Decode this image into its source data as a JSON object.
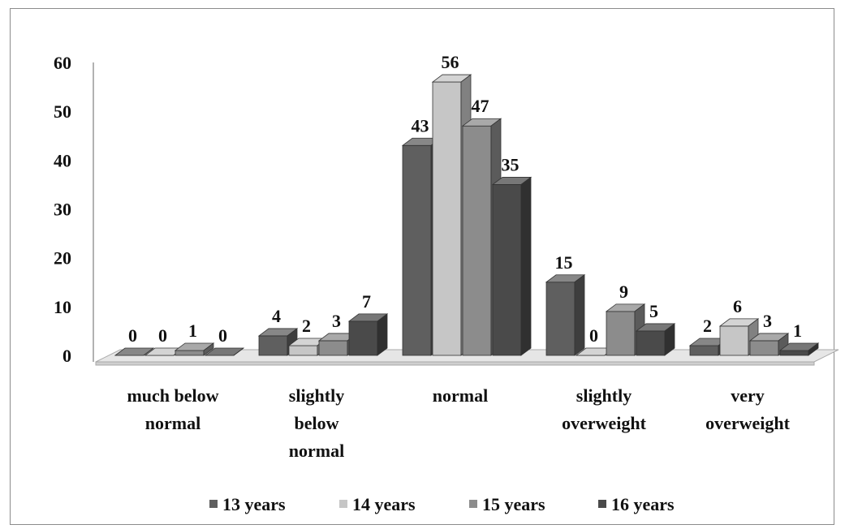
{
  "chart_data": {
    "type": "bar",
    "style": "3d-clustered-column",
    "categories": [
      [
        "much below",
        "normal"
      ],
      [
        "slightly",
        "below",
        "normal"
      ],
      [
        "normal"
      ],
      [
        "slightly",
        "overweight"
      ],
      [
        "very",
        "overweight"
      ]
    ],
    "series": [
      {
        "name": "13 years",
        "color": "#5f5f5f",
        "values": [
          0,
          4,
          43,
          15,
          2
        ]
      },
      {
        "name": "14 years",
        "color": "#c6c6c6",
        "values": [
          0,
          2,
          56,
          0,
          6
        ]
      },
      {
        "name": "15 years",
        "color": "#8c8c8c",
        "values": [
          1,
          3,
          47,
          9,
          3
        ]
      },
      {
        "name": "16 years",
        "color": "#4a4a4a",
        "values": [
          0,
          7,
          35,
          5,
          1
        ]
      }
    ],
    "ylim": [
      0,
      60
    ],
    "yticks": [
      "0",
      "10",
      "20",
      "30",
      "40",
      "50",
      "60"
    ],
    "grid": false,
    "legend_position": "bottom"
  }
}
